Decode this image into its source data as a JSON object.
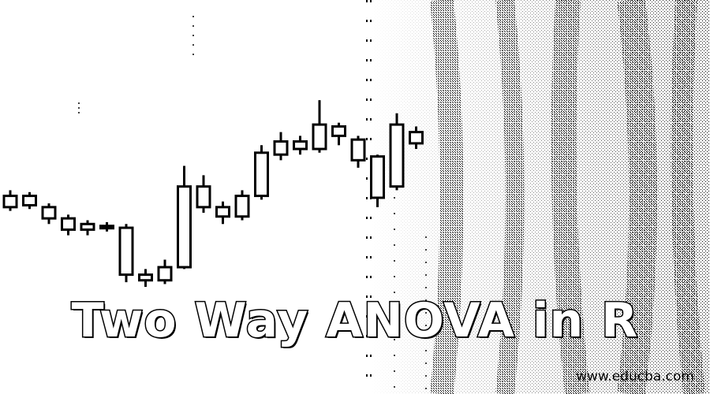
{
  "banner": {
    "title": "Two Way ANOVA in R",
    "site": "www.educba.com"
  },
  "colors": {
    "background": "#ffffff",
    "ink": "#000000"
  },
  "illustration": {
    "kind": "candlestick-chart-decoration",
    "candles": [
      {
        "open": 250,
        "close": 262,
        "high": 268,
        "low": 246
      },
      {
        "open": 262,
        "close": 252,
        "high": 266,
        "low": 248
      },
      {
        "open": 250,
        "close": 238,
        "high": 254,
        "low": 232
      },
      {
        "open": 238,
        "close": 226,
        "high": 242,
        "low": 220
      },
      {
        "open": 226,
        "close": 232,
        "high": 236,
        "low": 220
      },
      {
        "open": 230,
        "close": 228,
        "high": 234,
        "low": 224
      },
      {
        "open": 228,
        "close": 178,
        "high": 232,
        "low": 170
      },
      {
        "open": 178,
        "close": 172,
        "high": 184,
        "low": 165
      },
      {
        "open": 172,
        "close": 186,
        "high": 194,
        "low": 168
      },
      {
        "open": 186,
        "close": 272,
        "high": 294,
        "low": 184
      },
      {
        "open": 272,
        "close": 250,
        "high": 284,
        "low": 244
      },
      {
        "open": 250,
        "close": 240,
        "high": 256,
        "low": 232
      },
      {
        "open": 240,
        "close": 262,
        "high": 268,
        "low": 236
      },
      {
        "open": 262,
        "close": 308,
        "high": 316,
        "low": 258
      },
      {
        "open": 306,
        "close": 320,
        "high": 330,
        "low": 300
      },
      {
        "open": 320,
        "close": 312,
        "high": 326,
        "low": 306
      },
      {
        "open": 312,
        "close": 338,
        "high": 364,
        "low": 308
      },
      {
        "open": 336,
        "close": 326,
        "high": 340,
        "low": 316
      },
      {
        "open": 322,
        "close": 300,
        "high": 326,
        "low": 292
      },
      {
        "open": 304,
        "close": 260,
        "high": 306,
        "low": 250
      },
      {
        "open": 272,
        "close": 338,
        "high": 350,
        "low": 268
      },
      {
        "open": 330,
        "close": 318,
        "high": 336,
        "low": 312
      }
    ]
  }
}
